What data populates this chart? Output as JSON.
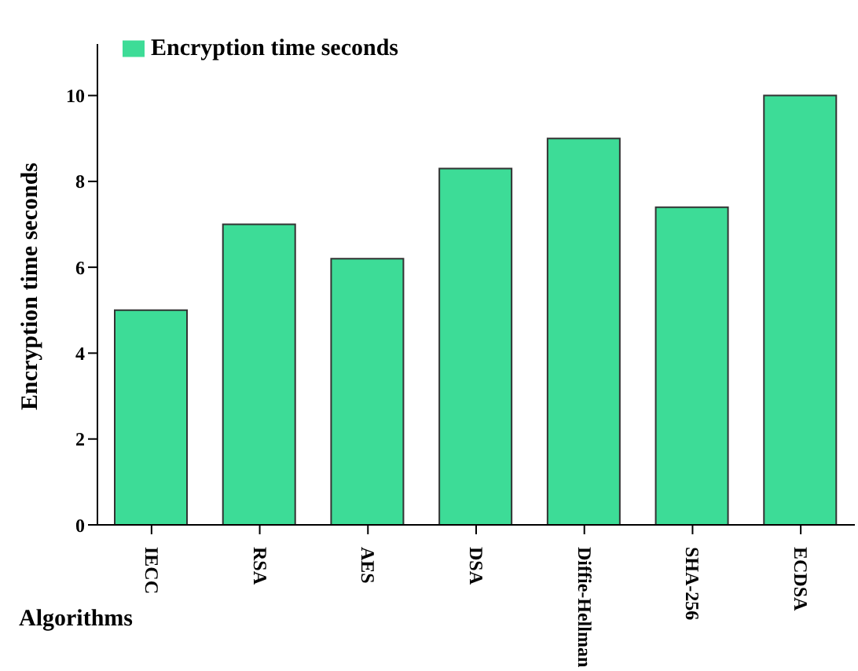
{
  "chart_data": {
    "type": "bar",
    "xlabel": "Algorithms",
    "ylabel": "Encryption time seconds",
    "categories": [
      "IECC",
      "RSA",
      "AES",
      "DSA",
      "Diffie-Hellman",
      "SHA-256",
      "ECDSA"
    ],
    "series": [
      {
        "name": "Encryption time seconds",
        "color": "#3ddc97",
        "values": [
          5,
          7,
          6.2,
          8.3,
          9,
          7.4,
          10
        ]
      }
    ],
    "ylim": [
      0,
      11.2
    ],
    "yticks": [
      0,
      2,
      4,
      6,
      8,
      10
    ],
    "grid": false,
    "legend": "top left"
  }
}
